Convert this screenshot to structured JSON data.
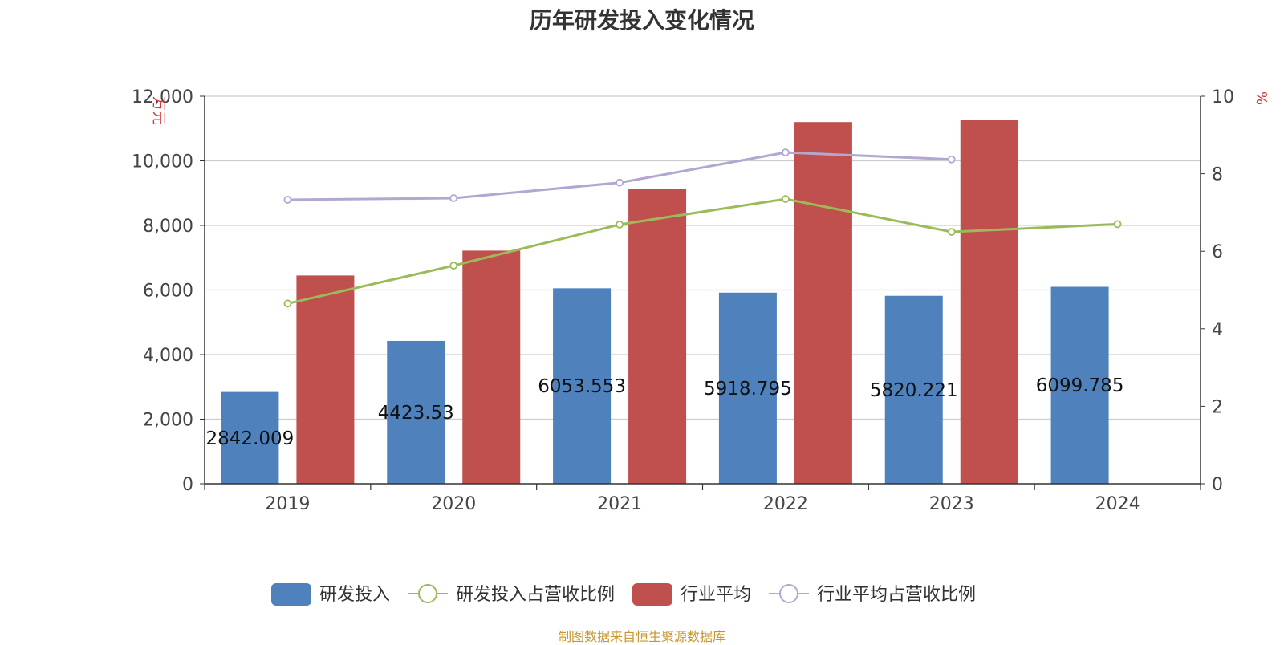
{
  "chart_data": {
    "type": "bar",
    "title": "历年研发投入变化情况",
    "categories": [
      "2019",
      "2020",
      "2021",
      "2022",
      "2023",
      "2024"
    ],
    "y_left": {
      "label": "万元",
      "ylim": [
        0,
        12000
      ],
      "ticks": [
        "0",
        "2,000",
        "4,000",
        "6,000",
        "8,000",
        "10,000",
        "12,000"
      ]
    },
    "y_right": {
      "label": "%",
      "ylim": [
        0,
        10
      ],
      "ticks": [
        "0",
        "2",
        "4",
        "6",
        "8",
        "10"
      ]
    },
    "grid": true,
    "legend_position": "bottom-center",
    "series": [
      {
        "name": "研发投入",
        "type": "bar",
        "axis": "left",
        "color": "#4f81bd",
        "values": [
          2842.009,
          4423.53,
          6053.553,
          5918.795,
          5820.221,
          6099.785
        ],
        "labels": [
          "2842.009",
          "4423.53",
          "6053.553",
          "5918.795",
          "5820.221",
          "6099.785"
        ]
      },
      {
        "name": "研发投入占营收比例",
        "type": "line",
        "axis": "right",
        "color": "#9bbb59",
        "values": [
          4.65,
          5.63,
          6.69,
          7.35,
          6.5,
          6.7
        ]
      },
      {
        "name": "行业平均",
        "type": "bar",
        "axis": "left",
        "color": "#c0504d",
        "values": [
          6450,
          7220,
          9120,
          11200,
          11260,
          null
        ]
      },
      {
        "name": "行业平均占营收比例",
        "type": "line",
        "axis": "right",
        "color": "#b3a6d0",
        "values": [
          7.33,
          7.37,
          7.77,
          8.55,
          8.37,
          null
        ]
      }
    ]
  },
  "footer": {
    "source": "制图数据来自恒生聚源数据库"
  }
}
